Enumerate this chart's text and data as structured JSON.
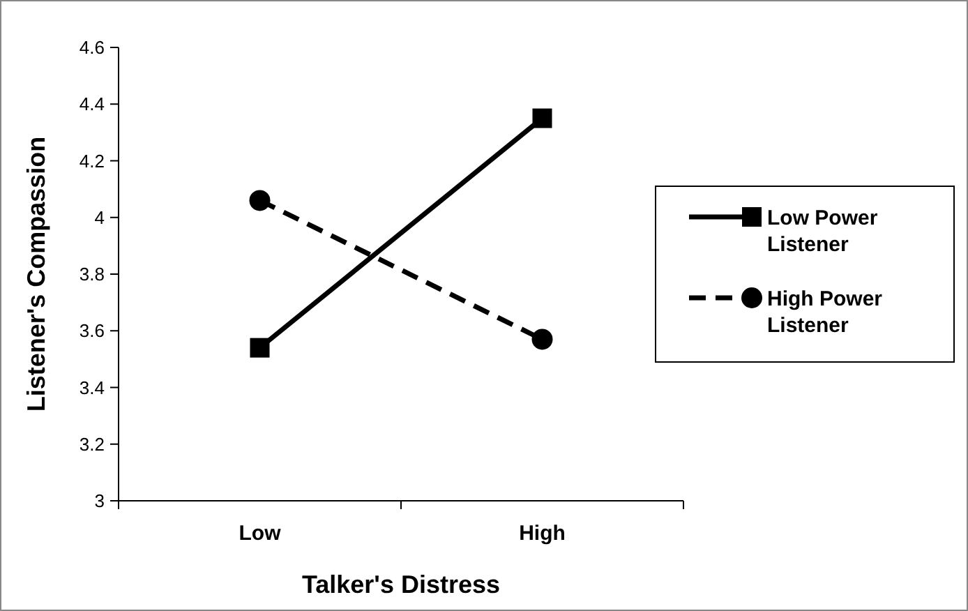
{
  "chart_data": {
    "type": "line",
    "xlabel": "Talker's Distress",
    "ylabel": "Listener's Compassion",
    "categories": [
      "Low",
      "High"
    ],
    "series": [
      {
        "name": "Low Power Listener",
        "color": "#000000",
        "values": [
          3.54,
          4.35
        ],
        "marker": "square",
        "line_style": "solid"
      },
      {
        "name": "High Power Listener",
        "color": "#000000",
        "values": [
          4.06,
          3.57
        ],
        "marker": "circle",
        "line_style": "dashed"
      }
    ],
    "ylim": [
      3,
      4.6
    ],
    "yticks": [
      3,
      3.2,
      3.4,
      3.6,
      3.8,
      4,
      4.2,
      4.4,
      4.6
    ],
    "grid": false,
    "legend": "right"
  }
}
